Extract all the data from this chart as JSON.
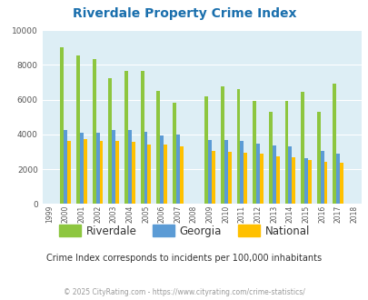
{
  "title": "Riverdale Property Crime Index",
  "years": [
    1999,
    2000,
    2001,
    2002,
    2003,
    2004,
    2005,
    2006,
    2007,
    2008,
    2009,
    2010,
    2011,
    2012,
    2013,
    2014,
    2015,
    2016,
    2017,
    2018
  ],
  "riverdale": [
    null,
    9000,
    8550,
    8350,
    7250,
    7650,
    7650,
    6500,
    5800,
    null,
    6200,
    6750,
    6600,
    5950,
    5300,
    5950,
    6450,
    5300,
    6900,
    null
  ],
  "georgia": [
    null,
    4250,
    4100,
    4100,
    4250,
    4250,
    4150,
    3950,
    4000,
    null,
    3700,
    3700,
    3650,
    3450,
    3350,
    3300,
    2650,
    3050,
    2900,
    null
  ],
  "national": [
    null,
    3600,
    3750,
    3650,
    3600,
    3550,
    3400,
    3400,
    3300,
    null,
    3050,
    3000,
    2950,
    2900,
    2750,
    2700,
    2550,
    2450,
    2350,
    null
  ],
  "color_riverdale": "#8dc63f",
  "color_georgia": "#5b9bd5",
  "color_national": "#ffc000",
  "bg_color": "#ddeef5",
  "ylim": [
    0,
    10000
  ],
  "yticks": [
    0,
    2000,
    4000,
    6000,
    8000,
    10000
  ],
  "subtitle": "Crime Index corresponds to incidents per 100,000 inhabitants",
  "footer": "© 2025 CityRating.com - https://www.cityrating.com/crime-statistics/",
  "title_color": "#1a6fad",
  "subtitle_color": "#333333",
  "footer_color": "#999999",
  "xlim_left": 1998.55,
  "xlim_right": 2018.45,
  "bar_width": 0.22
}
